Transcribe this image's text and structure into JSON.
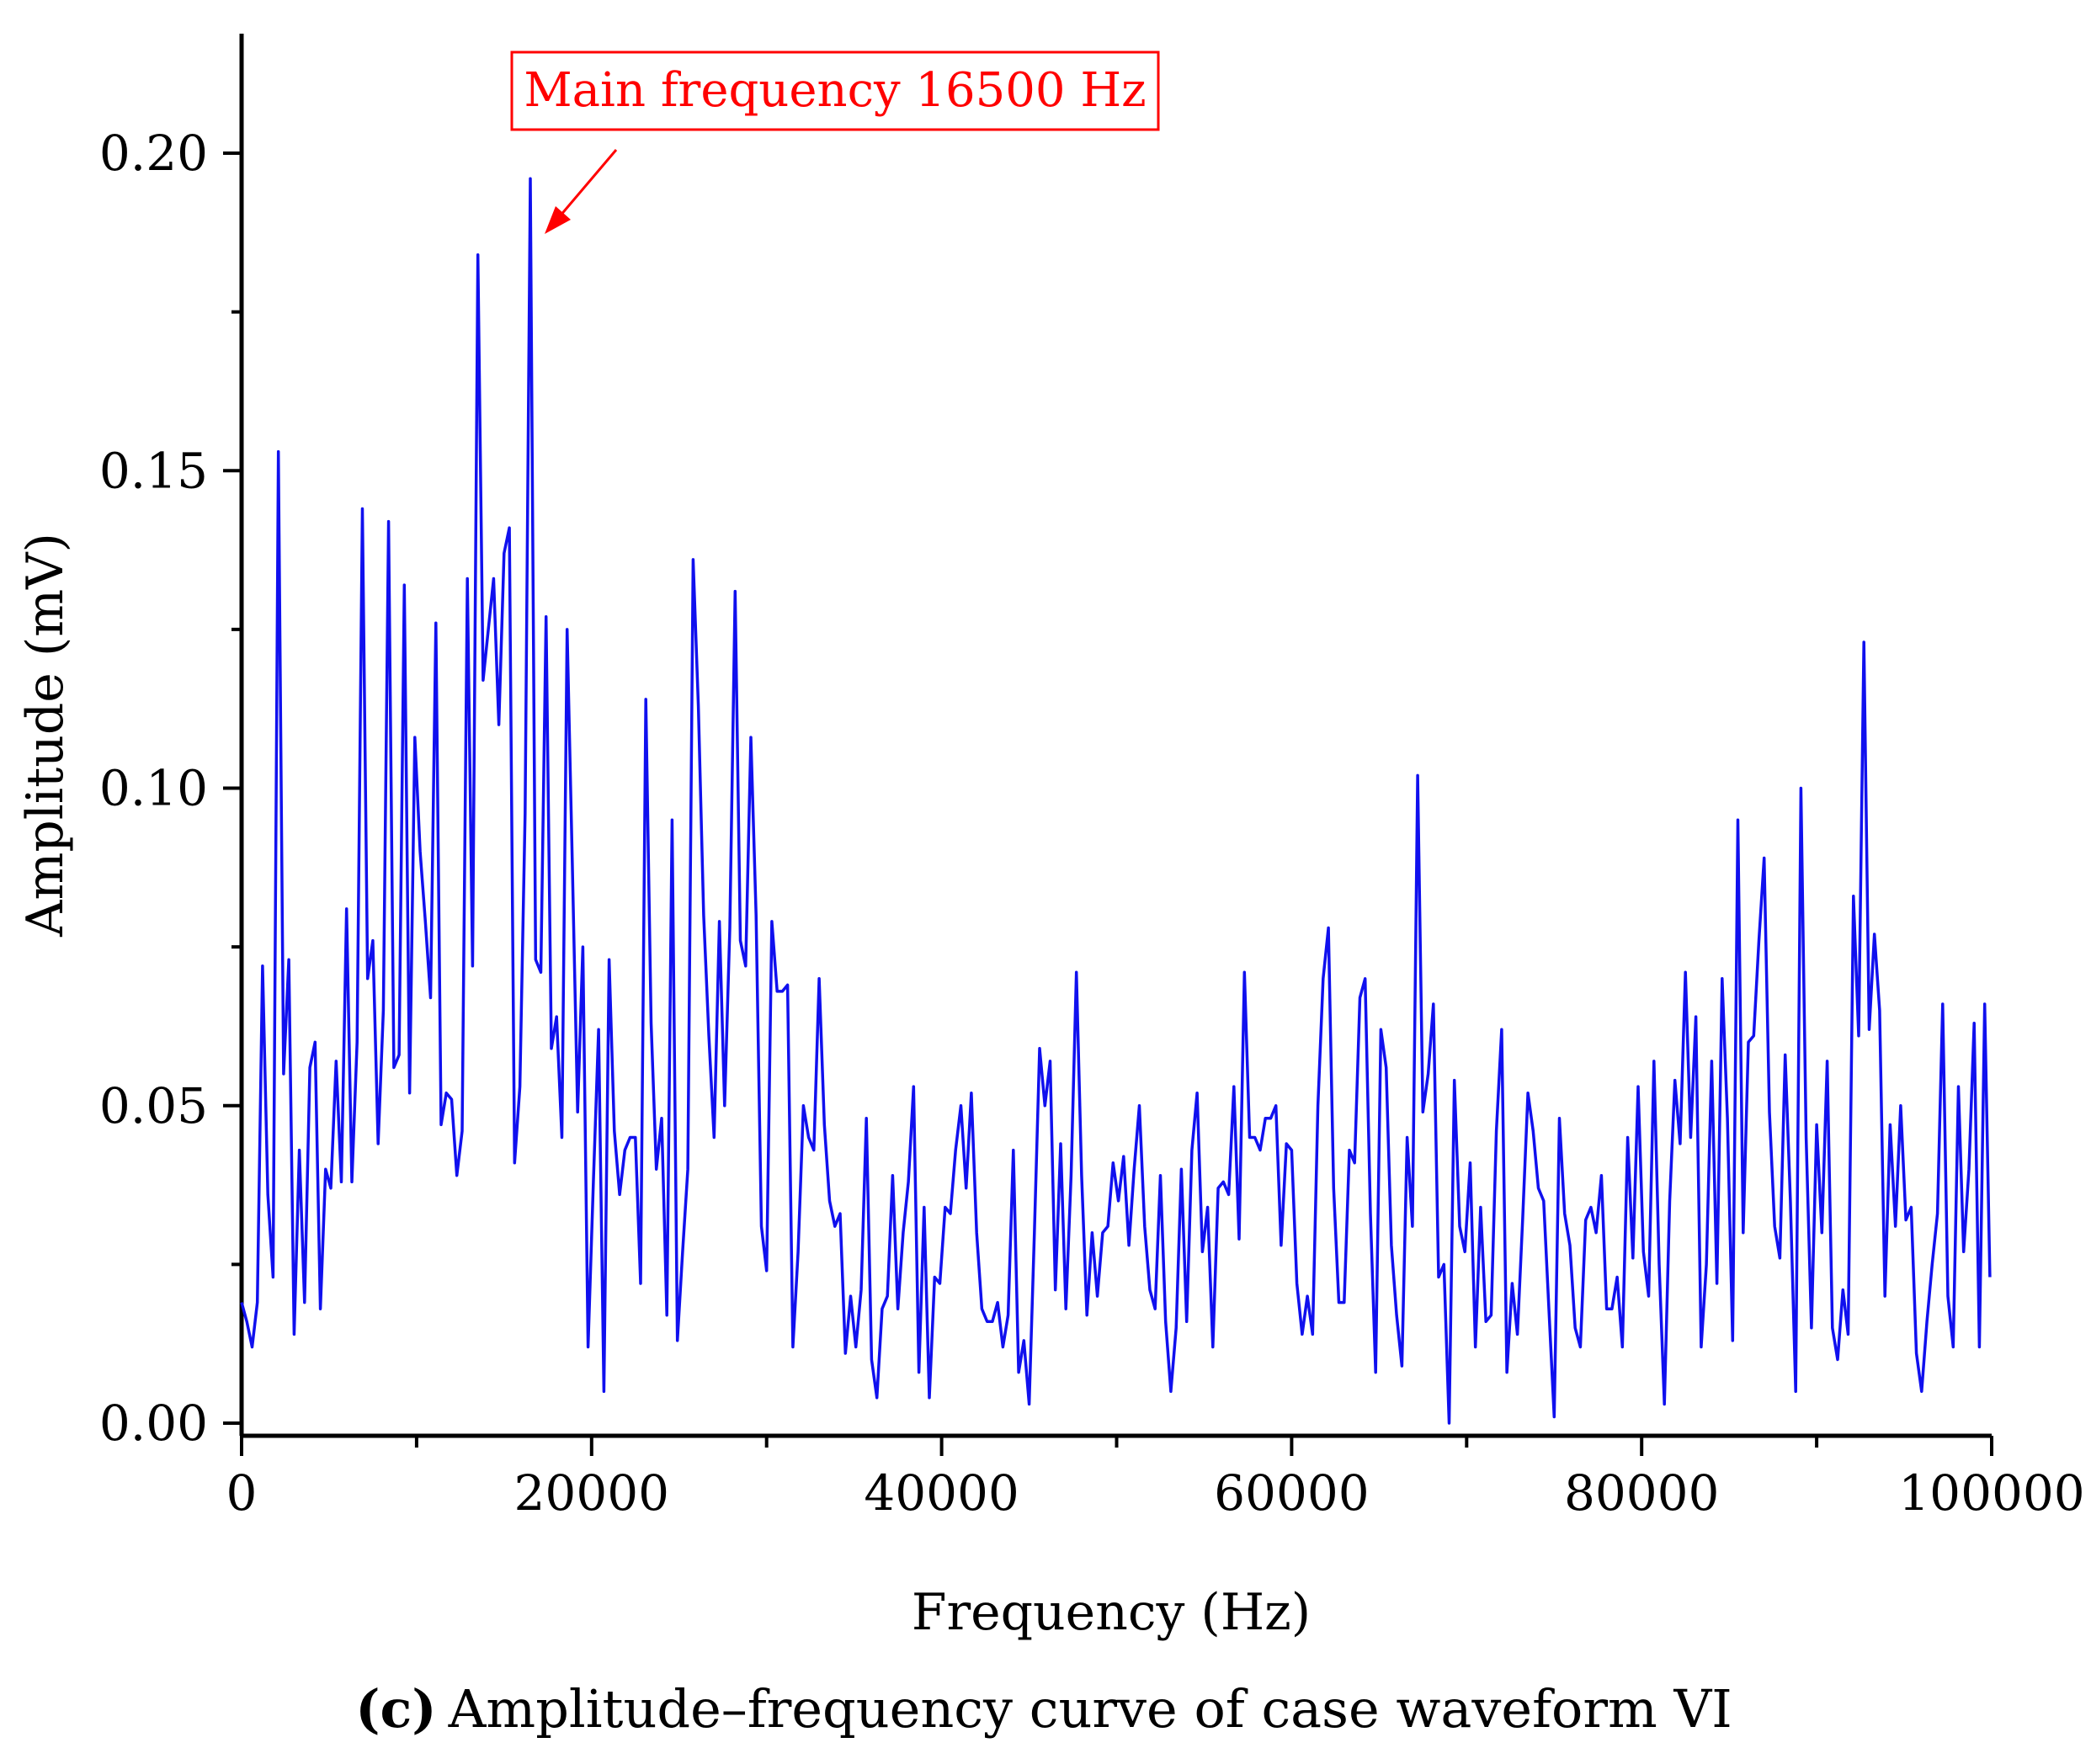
{
  "chart_data": {
    "type": "line",
    "title": "",
    "xlabel": "Frequency (Hz)",
    "ylabel": "Amplitude (mV)",
    "xlim": [
      0,
      100000
    ],
    "ylim": [
      -0.01,
      0.22
    ],
    "x_ticks": [
      0,
      20000,
      40000,
      60000,
      80000,
      100000
    ],
    "x_tick_labels": [
      "0",
      "20000",
      "40000",
      "60000",
      "80000",
      "100000"
    ],
    "y_ticks": [
      0.0,
      0.05,
      0.1,
      0.15,
      0.2
    ],
    "y_tick_labels": [
      "0.00",
      "0.05",
      "0.10",
      "0.15",
      "0.20"
    ],
    "grid": false,
    "series": [
      {
        "name": "Amplitude",
        "color": "#1010ee",
        "x_start": 0,
        "x_step": 300,
        "values": [
          0.019,
          0.016,
          0.012,
          0.019,
          0.072,
          0.036,
          0.023,
          0.153,
          0.055,
          0.073,
          0.014,
          0.043,
          0.019,
          0.056,
          0.06,
          0.018,
          0.04,
          0.037,
          0.057,
          0.038,
          0.081,
          0.038,
          0.06,
          0.144,
          0.07,
          0.076,
          0.044,
          0.065,
          0.142,
          0.056,
          0.058,
          0.132,
          0.052,
          0.108,
          0.09,
          0.079,
          0.067,
          0.126,
          0.047,
          0.052,
          0.051,
          0.039,
          0.046,
          0.133,
          0.072,
          0.184,
          0.117,
          0.125,
          0.133,
          0.11,
          0.137,
          0.141,
          0.041,
          0.053,
          0.096,
          0.196,
          0.073,
          0.071,
          0.127,
          0.059,
          0.064,
          0.045,
          0.125,
          0.088,
          0.049,
          0.075,
          0.012,
          0.038,
          0.062,
          0.005,
          0.073,
          0.046,
          0.036,
          0.043,
          0.045,
          0.045,
          0.022,
          0.114,
          0.063,
          0.04,
          0.048,
          0.017,
          0.095,
          0.013,
          0.027,
          0.04,
          0.136,
          0.113,
          0.08,
          0.061,
          0.045,
          0.079,
          0.05,
          0.078,
          0.131,
          0.076,
          0.072,
          0.108,
          0.08,
          0.031,
          0.024,
          0.079,
          0.068,
          0.068,
          0.069,
          0.012,
          0.027,
          0.05,
          0.045,
          0.043,
          0.07,
          0.047,
          0.035,
          0.031,
          0.033,
          0.011,
          0.02,
          0.012,
          0.021,
          0.048,
          0.01,
          0.004,
          0.018,
          0.02,
          0.039,
          0.018,
          0.03,
          0.038,
          0.053,
          0.008,
          0.034,
          0.004,
          0.023,
          0.022,
          0.034,
          0.033,
          0.043,
          0.05,
          0.037,
          0.052,
          0.03,
          0.018,
          0.016,
          0.016,
          0.019,
          0.012,
          0.017,
          0.043,
          0.008,
          0.013,
          0.003,
          0.03,
          0.059,
          0.05,
          0.057,
          0.021,
          0.044,
          0.018,
          0.039,
          0.071,
          0.039,
          0.017,
          0.03,
          0.02,
          0.03,
          0.031,
          0.041,
          0.035,
          0.042,
          0.028,
          0.04,
          0.05,
          0.031,
          0.021,
          0.018,
          0.039,
          0.016,
          0.005,
          0.015,
          0.04,
          0.016,
          0.043,
          0.052,
          0.027,
          0.034,
          0.012,
          0.037,
          0.038,
          0.036,
          0.053,
          0.029,
          0.071,
          0.045,
          0.045,
          0.043,
          0.048,
          0.048,
          0.05,
          0.028,
          0.044,
          0.043,
          0.022,
          0.014,
          0.02,
          0.014,
          0.05,
          0.07,
          0.078,
          0.037,
          0.019,
          0.019,
          0.043,
          0.041,
          0.067,
          0.07,
          0.033,
          0.008,
          0.062,
          0.056,
          0.028,
          0.017,
          0.009,
          0.045,
          0.031,
          0.102,
          0.049,
          0.055,
          0.066,
          0.023,
          0.025,
          0.0,
          0.054,
          0.031,
          0.027,
          0.041,
          0.012,
          0.034,
          0.016,
          0.017,
          0.046,
          0.062,
          0.008,
          0.022,
          0.014,
          0.032,
          0.052,
          0.046,
          0.037,
          0.035,
          0.018,
          0.001,
          0.048,
          0.033,
          0.028,
          0.015,
          0.012,
          0.032,
          0.034,
          0.03,
          0.039,
          0.018,
          0.018,
          0.023,
          0.012,
          0.045,
          0.026,
          0.053,
          0.027,
          0.02,
          0.057,
          0.025,
          0.003,
          0.035,
          0.054,
          0.044,
          0.071,
          0.045,
          0.064,
          0.012,
          0.025,
          0.057,
          0.022,
          0.07,
          0.048,
          0.013,
          0.095,
          0.03,
          0.06,
          0.061,
          0.076,
          0.089,
          0.049,
          0.031,
          0.026,
          0.058,
          0.035,
          0.005,
          0.1,
          0.045,
          0.015,
          0.047,
          0.03,
          0.057,
          0.015,
          0.01,
          0.021,
          0.014,
          0.083,
          0.061,
          0.123,
          0.062,
          0.077,
          0.065,
          0.02,
          0.047,
          0.031,
          0.05,
          0.032,
          0.034,
          0.011,
          0.005,
          0.016,
          0.025,
          0.033,
          0.066,
          0.02,
          0.012,
          0.053,
          0.027,
          0.04,
          0.063,
          0.012,
          0.066,
          0.023
        ]
      }
    ],
    "annotations": [
      {
        "text": "Main frequency 16500 Hz",
        "color": "#ff0000",
        "target_x": 16500,
        "target_y": 0.196
      }
    ],
    "caption_label": "(c)",
    "caption_text": "Amplitude–frequency curve of case waveform VI"
  }
}
